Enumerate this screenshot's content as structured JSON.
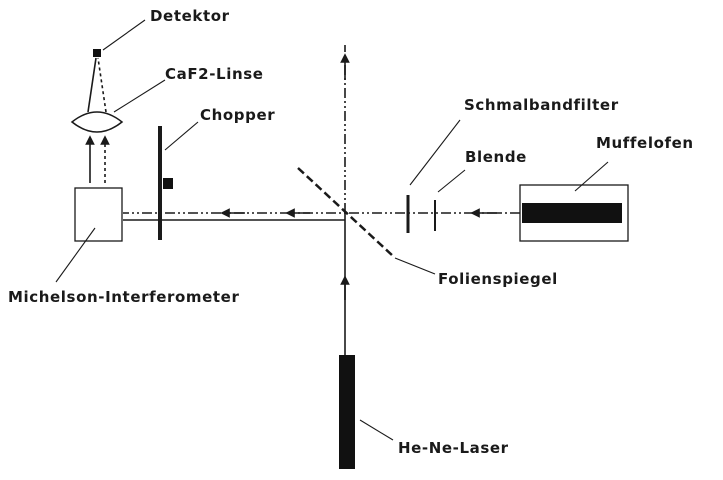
{
  "labels": {
    "detektor": "Detektor",
    "linse": "CaF2-Linse",
    "chopper": "Chopper",
    "schmalbandfilter": "Schmalbandfilter",
    "blende": "Blende",
    "muffelofen": "Muffelofen",
    "michelson": "Michelson-Interferometer",
    "folienspiegel": "Folienspiegel",
    "laser": "He-Ne-Laser"
  }
}
